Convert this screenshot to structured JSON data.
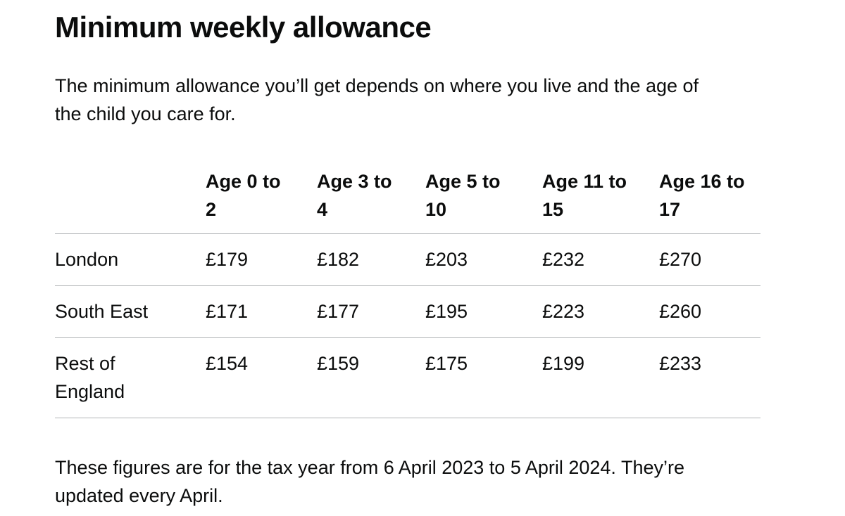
{
  "page": {
    "title": "Minimum weekly allowance",
    "intro": "The minimum allowance you’ll get depends on where you live and the age of the child you care for.",
    "footnote": "These figures are for the tax year from 6 April 2023 to 5 April 2024. They’re updated every April."
  },
  "table": {
    "columns": [
      {
        "label": "Age 0 to 2",
        "lines": [
          "Age 0 to",
          "2"
        ]
      },
      {
        "label": "Age 3 to 4",
        "lines": [
          "Age 3 to",
          "4"
        ]
      },
      {
        "label": "Age 5 to 10",
        "lines": [
          "Age 5 to",
          "10"
        ]
      },
      {
        "label": "Age 11 to 15",
        "lines": [
          "Age 11 to",
          "15"
        ]
      },
      {
        "label": "Age 16 to 17",
        "lines": [
          "Age 16 to",
          "17"
        ]
      }
    ],
    "rows": [
      {
        "region": "London",
        "region_lines": [
          "London"
        ],
        "values": [
          "£179",
          "£182",
          "£203",
          "£232",
          "£270"
        ]
      },
      {
        "region": "South East",
        "region_lines": [
          "South East"
        ],
        "values": [
          "£171",
          "£177",
          "£195",
          "£223",
          "£260"
        ]
      },
      {
        "region": "Rest of England",
        "region_lines": [
          "Rest of",
          "England"
        ],
        "values": [
          "£154",
          "£159",
          "£175",
          "£199",
          "£233"
        ]
      }
    ]
  },
  "colors": {
    "text": "#0b0c0c",
    "table_border": "#b1b4b6",
    "background": "#ffffff"
  }
}
